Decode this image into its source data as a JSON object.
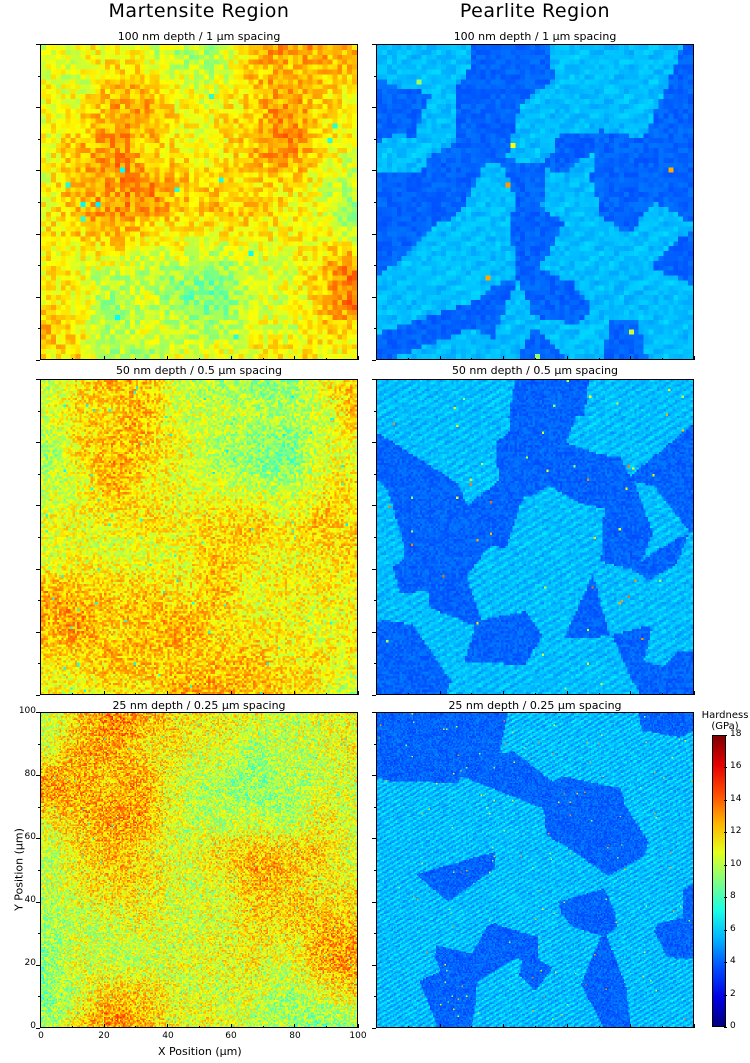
{
  "columns": {
    "martensite": "Martensite Region",
    "pearlite": "Pearlite Region"
  },
  "rows": [
    {
      "title": "100 nm depth / 1 µm spacing",
      "grid": 64
    },
    {
      "title": "50 nm depth / 0.5 µm spacing",
      "grid": 140
    },
    {
      "title": "25 nm depth / 0.25 µm spacing",
      "grid": 220
    }
  ],
  "axes": {
    "xlabel": "X Position (µm)",
    "ylabel": "Y Position (µm)",
    "xticks": [
      "0",
      "20",
      "40",
      "60",
      "80",
      "100"
    ],
    "yticks": [
      "0",
      "20",
      "40",
      "60",
      "80",
      "100"
    ]
  },
  "colorbar": {
    "title_line1": "Hardness",
    "title_line2": "(GPa)",
    "ticks": [
      "0",
      "2",
      "4",
      "6",
      "8",
      "10",
      "12",
      "14",
      "16",
      "18"
    ],
    "min": 0,
    "max": 18,
    "colormap": "jet"
  },
  "chart_data": {
    "type": "heatmap",
    "title": "",
    "xlabel": "X Position (µm)",
    "ylabel": "Y Position (µm)",
    "xlim": [
      0,
      100
    ],
    "ylim": [
      0,
      100
    ],
    "value_range": [
      0,
      18
    ],
    "value_unit": "GPa",
    "regions": [
      {
        "name": "Martensite Region",
        "typical_hardness": 10.5,
        "range": [
          7,
          14
        ]
      },
      {
        "name": "Pearlite Region",
        "typical_hardness": 5,
        "range": [
          3,
          7
        ]
      }
    ],
    "panels": [
      {
        "region": "Martensite Region",
        "title": "100 nm depth / 1 µm spacing"
      },
      {
        "region": "Pearlite Region",
        "title": "100 nm depth / 1 µm spacing"
      },
      {
        "region": "Martensite Region",
        "title": "50 nm depth / 0.5 µm spacing"
      },
      {
        "region": "Pearlite Region",
        "title": "50 nm depth / 0.5 µm spacing"
      },
      {
        "region": "Martensite Region",
        "title": "25 nm depth / 0.25 µm spacing"
      },
      {
        "region": "Pearlite Region",
        "title": "25 nm depth / 0.25 µm spacing"
      }
    ]
  }
}
